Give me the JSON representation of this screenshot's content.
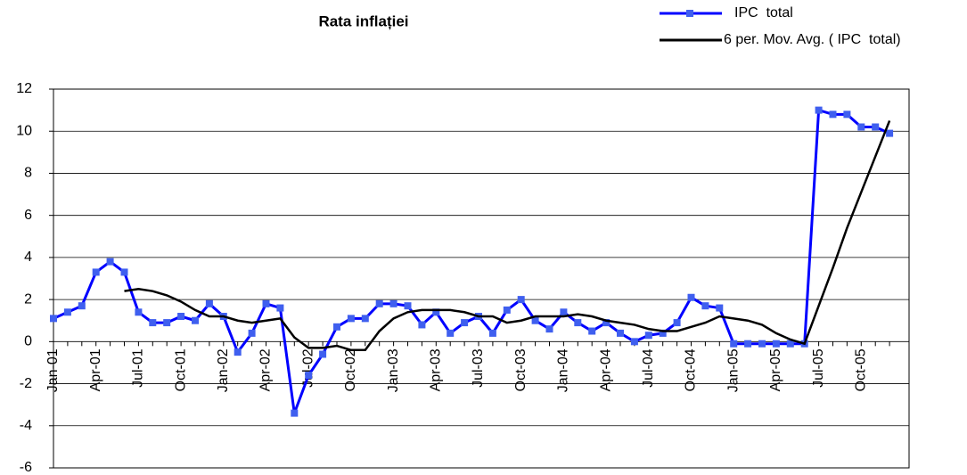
{
  "chart_data": {
    "type": "line",
    "title": "Rata inflației",
    "categories": [
      "Jan-01",
      null,
      null,
      "Apr-01",
      null,
      null,
      "Jul-01",
      null,
      null,
      "Oct-01",
      null,
      null,
      "Jan-02",
      null,
      null,
      "Apr-02",
      null,
      null,
      "Jul-02",
      null,
      null,
      "Oct-02",
      null,
      null,
      "Jan-03",
      null,
      null,
      "Apr-03",
      null,
      null,
      "Jul-03",
      null,
      null,
      "Oct-03",
      null,
      null,
      "Jan-04",
      null,
      null,
      "Apr-04",
      null,
      null,
      "Jul-04",
      null,
      null,
      "Oct-04",
      null,
      null,
      "Jan-05",
      null,
      null,
      "Apr-05",
      null,
      null,
      "Jul-05",
      null,
      null,
      "Oct-05",
      null,
      null
    ],
    "series": [
      {
        "name": "IPC  total",
        "color": "#0000ff",
        "marker_color": "#3f5fef",
        "values": [
          1.1,
          1.4,
          1.7,
          3.3,
          3.8,
          3.3,
          1.4,
          0.9,
          0.9,
          1.2,
          1.0,
          1.8,
          1.2,
          -0.5,
          0.4,
          1.8,
          1.6,
          -3.4,
          -1.6,
          -0.6,
          0.7,
          1.1,
          1.1,
          1.8,
          1.8,
          1.7,
          0.8,
          1.4,
          0.4,
          0.9,
          1.2,
          0.4,
          1.5,
          2.0,
          1.0,
          0.6,
          1.4,
          0.9,
          0.5,
          0.9,
          0.4,
          0.0,
          0.3,
          0.4,
          0.9,
          2.1,
          1.7,
          1.6,
          -0.1,
          -0.1,
          -0.1,
          -0.1,
          -0.1,
          -0.1,
          11.0,
          10.8,
          10.8,
          10.2,
          10.2,
          9.9
        ]
      },
      {
        "name": "6 per. Mov. Avg. ( IPC  total)",
        "color": "#000000",
        "values": [
          null,
          null,
          null,
          null,
          null,
          2.4,
          2.5,
          2.4,
          2.2,
          1.9,
          1.5,
          1.2,
          1.2,
          1.0,
          0.9,
          1.0,
          1.1,
          0.2,
          -0.3,
          -0.3,
          -0.2,
          -0.4,
          -0.4,
          0.5,
          1.1,
          1.4,
          1.5,
          1.5,
          1.5,
          1.4,
          1.2,
          1.2,
          0.9,
          1.0,
          1.2,
          1.2,
          1.2,
          1.3,
          1.2,
          1.0,
          0.9,
          0.8,
          0.6,
          0.5,
          0.5,
          0.7,
          0.9,
          1.2,
          1.1,
          1.0,
          0.8,
          0.4,
          0.1,
          -0.1,
          1.7,
          3.5,
          5.4,
          7.1,
          8.8,
          10.5
        ]
      }
    ],
    "ylim": [
      -6,
      12
    ],
    "yticks": [
      -6,
      -4,
      -2,
      0,
      2,
      4,
      6,
      8,
      10,
      12
    ],
    "grid": true
  }
}
